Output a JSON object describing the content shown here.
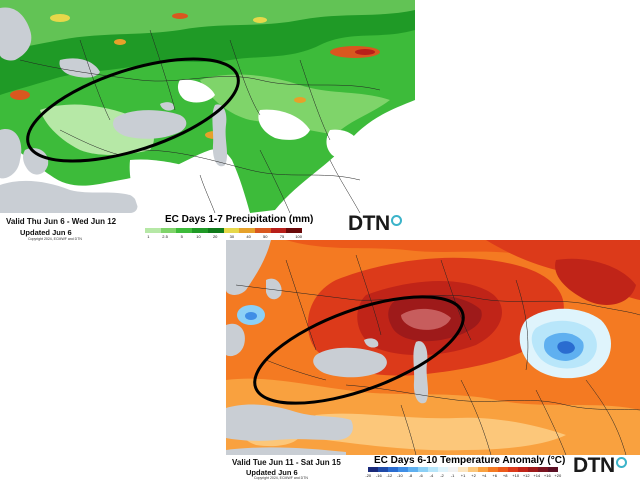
{
  "brand": "DTN",
  "precip_panel": {
    "valid": "Valid Thu Jun 6 - Wed Jun 12",
    "updated": "Updated Jun 6",
    "copyright": "Copyright 2024, ECMWF and DTN",
    "title": "EC Days 1-7 Precipitation (mm)",
    "legend_ticks": [
      "1",
      "2.5",
      "5",
      "10",
      "20",
      "30",
      "40",
      "50",
      "75",
      "100"
    ],
    "legend_colors": [
      "#b6e8a6",
      "#7fd46a",
      "#3dbb3a",
      "#1f9a26",
      "#0f7a1a",
      "#e6d84a",
      "#e6a12a",
      "#d9571f",
      "#b81f1a",
      "#6a0a0a"
    ]
  },
  "temp_panel": {
    "valid": "Valid Tue Jun 11 - Sat Jun 15",
    "updated": "Updated Jun 6",
    "copyright": "Copyright 2024, ECMWF and DTN",
    "title": "EC Days 6-10 Temperature Anomaly (°C)",
    "legend_ticks": [
      "-20",
      "-16",
      "-12",
      "-10",
      "-8",
      "-6",
      "-4",
      "-2",
      "-1",
      "+1",
      "+2",
      "+4",
      "+6",
      "+8",
      "+10",
      "+12",
      "+14",
      "+16",
      "+20"
    ],
    "legend_colors": [
      "#1a2a7a",
      "#1f4aa8",
      "#2a6cd0",
      "#3f8ee6",
      "#5fb0f0",
      "#8cd0f6",
      "#b8e6fa",
      "#dff4fc",
      "#f2f2f2",
      "#fde6c0",
      "#fcc77a",
      "#f9a13f",
      "#f47a22",
      "#ec5a1a",
      "#dc3a1a",
      "#c02418",
      "#9e1a1a",
      "#7a1420",
      "#5a0f24"
    ]
  }
}
